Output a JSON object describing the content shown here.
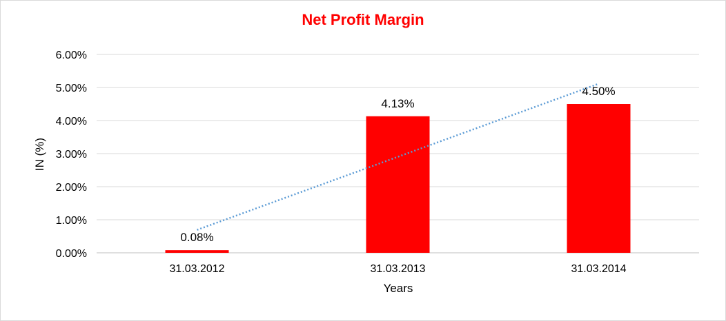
{
  "chart_data": {
    "type": "bar",
    "title": "Net Profit Margin",
    "xlabel": "Years",
    "ylabel": "IN (%)",
    "categories": [
      "31.03.2012",
      "31.03.2013",
      "31.03.2014"
    ],
    "values": [
      0.08,
      4.13,
      4.5
    ],
    "data_labels": [
      "0.08%",
      "4.13%",
      "4.50%"
    ],
    "ylim": [
      0,
      6
    ],
    "yticks": [
      0,
      1,
      2,
      3,
      4,
      5,
      6
    ],
    "ytick_labels": [
      "0.00%",
      "1.00%",
      "2.00%",
      "3.00%",
      "4.00%",
      "5.00%",
      "6.00%"
    ],
    "grid": true,
    "legend": "none",
    "trendline": {
      "type": "linear",
      "style": "dotted",
      "color": "#5b9bd5"
    },
    "colors": {
      "bar": "#ff0000",
      "title": "#ff0000",
      "grid": "#d9d9d9"
    }
  }
}
